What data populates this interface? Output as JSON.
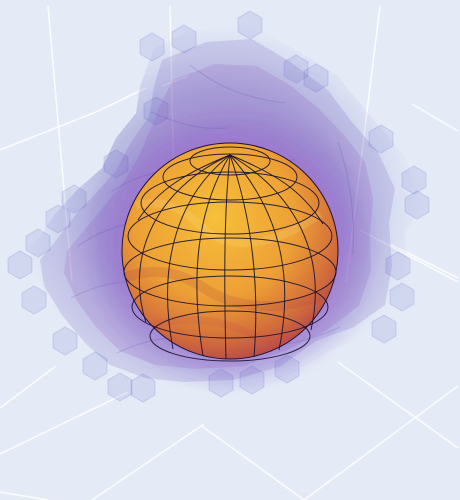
{
  "scene": {
    "background_color": "#e5ebf6",
    "grid_color": "#ffffff",
    "sphere_colors": [
      "#f5b52c",
      "#e38a31",
      "#c94f4d"
    ],
    "cloud_colors": [
      "#3b2fa3",
      "#7a2fa8",
      "#a84ad6",
      "#6b6fd0"
    ],
    "wireframe_color": "#1b1433",
    "plot_type": "3d-volume-with-sphere",
    "interaction": "3d-scene-drag-rotate"
  },
  "chart_data": {
    "type": "scatter",
    "series": []
  }
}
